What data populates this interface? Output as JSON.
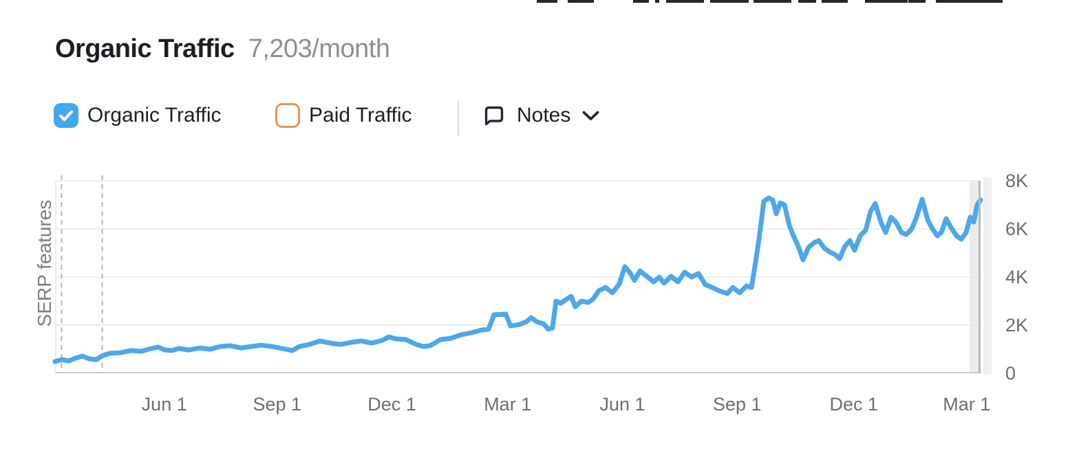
{
  "header": {
    "title": "Organic Traffic",
    "value": "7,203/month"
  },
  "controls": {
    "organic": {
      "label": "Organic Traffic",
      "checked": true
    },
    "paid": {
      "label": "Paid Traffic",
      "checked": false
    },
    "notes": {
      "label": "Notes"
    }
  },
  "colors": {
    "checkbox_checked": "#41a8ee",
    "checkbox_unchecked_border": "#e8925c",
    "line": "#4ea7e8",
    "grid": "#e5e7e9",
    "axis_line": "#c8ccce",
    "plot_right_border": "#b3b8bb",
    "band": "#e9ebed",
    "dashed": "#b5b5b5",
    "axis_text": "#6b6e71",
    "title_text": "#1b1d21",
    "muted_text": "#8b8f94"
  },
  "top_artifacts": {
    "color": "#262626",
    "segments": [
      [
        780,
        30
      ],
      [
        825,
        38
      ],
      [
        920,
        23
      ],
      [
        952,
        6
      ],
      [
        968,
        55
      ],
      [
        1032,
        56
      ],
      [
        1095,
        55
      ],
      [
        1160,
        26
      ],
      [
        1194,
        38
      ],
      [
        1257,
        62
      ],
      [
        1320,
        25
      ],
      [
        1360,
        97
      ]
    ]
  },
  "chart_data": {
    "type": "line",
    "title": "Organic Traffic",
    "subtitle": "7,203/month",
    "left_axis_label": "SERP features",
    "legend_position": "none",
    "grid": true,
    "y_axis": {
      "min": 0,
      "max": 8000,
      "position": "right",
      "ticks": [
        {
          "label": "8K",
          "value": 8000
        },
        {
          "label": "6K",
          "value": 6000
        },
        {
          "label": "4K",
          "value": 4000
        },
        {
          "label": "2K",
          "value": 2000
        },
        {
          "label": "0",
          "value": 0
        }
      ]
    },
    "x_axis": {
      "ticks": [
        {
          "label": "Jun 1",
          "f": 0.118
        },
        {
          "label": "Sep 1",
          "f": 0.24
        },
        {
          "label": "Dec 1",
          "f": 0.364
        },
        {
          "label": "Mar 1",
          "f": 0.489
        },
        {
          "label": "Jun 1",
          "f": 0.613
        },
        {
          "label": "Sep 1",
          "f": 0.737
        },
        {
          "label": "Dec 1",
          "f": 0.863
        },
        {
          "label": "Mar 1",
          "f": 0.985
        }
      ]
    },
    "note_markers_f": [
      0.007,
      0.051
    ],
    "highlight_band": {
      "from": 0.988,
      "to": 1.0
    },
    "series": [
      {
        "name": "Organic Traffic",
        "color": "#4ea7e8",
        "points": [
          [
            0.0,
            490
          ],
          [
            0.0074,
            570
          ],
          [
            0.0149,
            515
          ],
          [
            0.0223,
            630
          ],
          [
            0.0297,
            715
          ],
          [
            0.0372,
            600
          ],
          [
            0.0446,
            570
          ],
          [
            0.052,
            745
          ],
          [
            0.0595,
            830
          ],
          [
            0.0706,
            855
          ],
          [
            0.0818,
            945
          ],
          [
            0.0929,
            915
          ],
          [
            0.1041,
            1030
          ],
          [
            0.1115,
            1085
          ],
          [
            0.119,
            970
          ],
          [
            0.1264,
            945
          ],
          [
            0.1338,
            1030
          ],
          [
            0.145,
            970
          ],
          [
            0.1561,
            1055
          ],
          [
            0.1673,
            1000
          ],
          [
            0.1784,
            1115
          ],
          [
            0.1896,
            1145
          ],
          [
            0.2007,
            1055
          ],
          [
            0.2119,
            1115
          ],
          [
            0.223,
            1170
          ],
          [
            0.2342,
            1115
          ],
          [
            0.2454,
            1030
          ],
          [
            0.2565,
            945
          ],
          [
            0.2639,
            1115
          ],
          [
            0.2751,
            1200
          ],
          [
            0.2862,
            1345
          ],
          [
            0.2974,
            1255
          ],
          [
            0.3085,
            1200
          ],
          [
            0.3197,
            1285
          ],
          [
            0.3309,
            1345
          ],
          [
            0.342,
            1255
          ],
          [
            0.3532,
            1370
          ],
          [
            0.3606,
            1515
          ],
          [
            0.368,
            1430
          ],
          [
            0.3792,
            1400
          ],
          [
            0.3903,
            1200
          ],
          [
            0.3978,
            1115
          ],
          [
            0.4052,
            1145
          ],
          [
            0.4164,
            1400
          ],
          [
            0.4275,
            1455
          ],
          [
            0.4387,
            1600
          ],
          [
            0.4498,
            1685
          ],
          [
            0.461,
            1800
          ],
          [
            0.4684,
            1830
          ],
          [
            0.4743,
            2430
          ],
          [
            0.487,
            2460
          ],
          [
            0.4922,
            1970
          ],
          [
            0.5019,
            2030
          ],
          [
            0.5093,
            2145
          ],
          [
            0.5145,
            2315
          ],
          [
            0.5204,
            2145
          ],
          [
            0.5279,
            2055
          ],
          [
            0.5331,
            1830
          ],
          [
            0.5375,
            1885
          ],
          [
            0.5413,
            3000
          ],
          [
            0.5465,
            2915
          ],
          [
            0.5517,
            3055
          ],
          [
            0.5576,
            3200
          ],
          [
            0.5621,
            2770
          ],
          [
            0.5688,
            3000
          ],
          [
            0.5762,
            2945
          ],
          [
            0.5814,
            3085
          ],
          [
            0.5874,
            3430
          ],
          [
            0.5948,
            3570
          ],
          [
            0.6022,
            3345
          ],
          [
            0.6097,
            3715
          ],
          [
            0.6156,
            4430
          ],
          [
            0.6208,
            4200
          ],
          [
            0.626,
            3860
          ],
          [
            0.632,
            4255
          ],
          [
            0.6394,
            4030
          ],
          [
            0.6468,
            3800
          ],
          [
            0.6528,
            4000
          ],
          [
            0.658,
            3745
          ],
          [
            0.6654,
            4030
          ],
          [
            0.6729,
            3800
          ],
          [
            0.6803,
            4200
          ],
          [
            0.6877,
            4000
          ],
          [
            0.6952,
            4145
          ],
          [
            0.7026,
            3685
          ],
          [
            0.71,
            3570
          ],
          [
            0.7175,
            3430
          ],
          [
            0.7264,
            3315
          ],
          [
            0.7323,
            3570
          ],
          [
            0.7398,
            3345
          ],
          [
            0.7472,
            3630
          ],
          [
            0.7524,
            3570
          ],
          [
            0.7561,
            4430
          ],
          [
            0.7606,
            5570
          ],
          [
            0.7658,
            7145
          ],
          [
            0.771,
            7285
          ],
          [
            0.7755,
            7200
          ],
          [
            0.7792,
            6630
          ],
          [
            0.7836,
            7085
          ],
          [
            0.7881,
            7000
          ],
          [
            0.7933,
            6145
          ],
          [
            0.7978,
            5715
          ],
          [
            0.803,
            5285
          ],
          [
            0.8082,
            4715
          ],
          [
            0.8141,
            5230
          ],
          [
            0.8201,
            5430
          ],
          [
            0.8253,
            5515
          ],
          [
            0.8312,
            5200
          ],
          [
            0.8364,
            5055
          ],
          [
            0.8424,
            4945
          ],
          [
            0.8476,
            4770
          ],
          [
            0.8535,
            5285
          ],
          [
            0.8587,
            5515
          ],
          [
            0.8639,
            5115
          ],
          [
            0.8699,
            5715
          ],
          [
            0.8758,
            5945
          ],
          [
            0.881,
            6715
          ],
          [
            0.8862,
            7055
          ],
          [
            0.8922,
            6285
          ],
          [
            0.8974,
            5855
          ],
          [
            0.9033,
            6485
          ],
          [
            0.9085,
            6285
          ],
          [
            0.9145,
            5855
          ],
          [
            0.9197,
            5770
          ],
          [
            0.9256,
            6000
          ],
          [
            0.9308,
            6485
          ],
          [
            0.9368,
            7230
          ],
          [
            0.9428,
            6370
          ],
          [
            0.948,
            6000
          ],
          [
            0.9532,
            5715
          ],
          [
            0.9576,
            5855
          ],
          [
            0.9628,
            6430
          ],
          [
            0.968,
            6055
          ],
          [
            0.974,
            5715
          ],
          [
            0.9792,
            5570
          ],
          [
            0.9844,
            5855
          ],
          [
            0.9888,
            6485
          ],
          [
            0.9926,
            6285
          ],
          [
            0.9963,
            7000
          ],
          [
            1.0,
            7203
          ]
        ]
      }
    ]
  }
}
